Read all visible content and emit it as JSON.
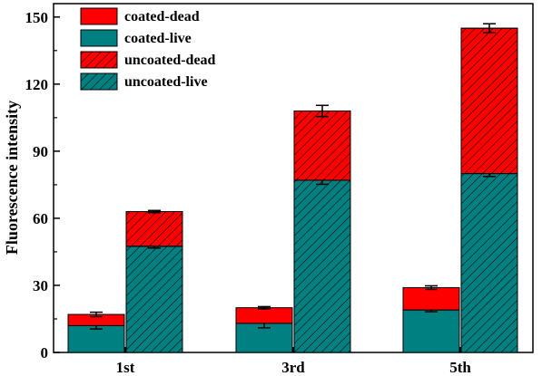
{
  "chart_data": {
    "type": "bar",
    "stacked": true,
    "categories": [
      "1st",
      "3rd",
      "5th"
    ],
    "ylabel": "Fluorescence intensity",
    "xlabel": "",
    "ylim": [
      0,
      156
    ],
    "yticks": [
      0,
      30,
      60,
      90,
      120,
      150
    ],
    "groups": [
      {
        "name": "coated",
        "segments": [
          {
            "name": "coated-live",
            "values": [
              12,
              13,
              19
            ],
            "errors": [
              1.5,
              2.0,
              0.8
            ],
            "color": "#008080",
            "hatched": false
          },
          {
            "name": "coated-dead",
            "values": [
              5,
              7,
              10
            ],
            "errors": [
              1.0,
              0.5,
              0.8
            ],
            "color": "#ff0000",
            "hatched": false
          }
        ]
      },
      {
        "name": "uncoated",
        "segments": [
          {
            "name": "uncoated-live",
            "values": [
              47.5,
              77,
              80
            ],
            "errors": [
              0.8,
              1.8,
              1.3
            ],
            "color": "#008080",
            "hatched": true
          },
          {
            "name": "uncoated-dead",
            "values": [
              15.5,
              31,
              65
            ],
            "errors": [
              0.5,
              2.5,
              2.0
            ],
            "color": "#ff0000",
            "hatched": true
          }
        ]
      }
    ],
    "legend": {
      "position": "top-left",
      "entries": [
        {
          "label": "coated-dead",
          "color": "#ff0000",
          "hatched": false
        },
        {
          "label": "coated-live",
          "color": "#008080",
          "hatched": false
        },
        {
          "label": "uncoated-dead",
          "color": "#ff0000",
          "hatched": true
        },
        {
          "label": "uncoated-live",
          "color": "#008080",
          "hatched": true
        }
      ]
    },
    "grid": false
  }
}
